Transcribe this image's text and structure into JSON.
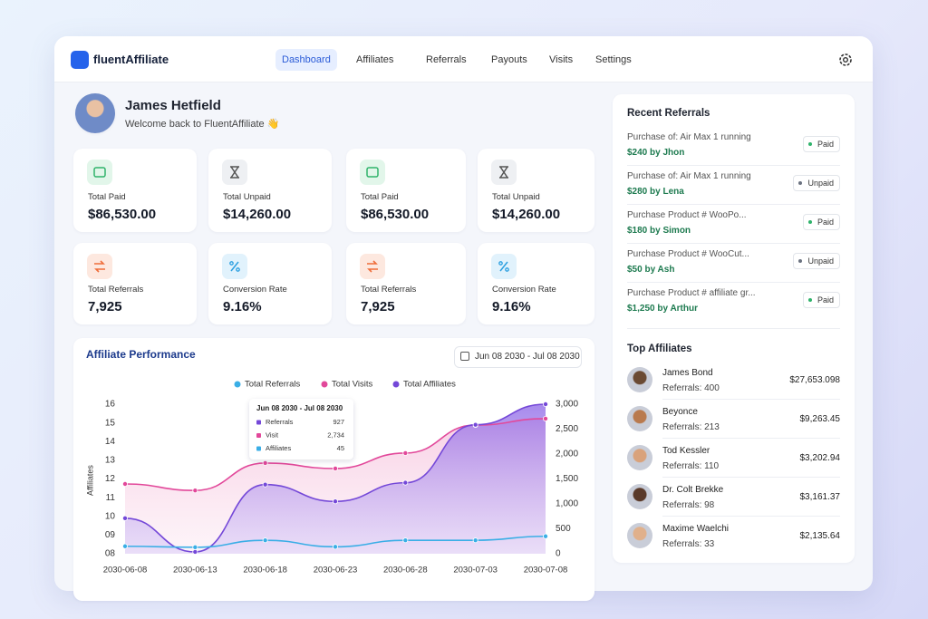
{
  "header": {
    "brand": "fluentAffiliate",
    "nav": [
      "Dashboard",
      "Affiliates",
      "Referrals",
      "Payouts",
      "Visits",
      "Settings"
    ]
  },
  "profile": {
    "name": "James Hetfield",
    "greeting": "Welcome back to FluentAffiliate 👋"
  },
  "stats": [
    {
      "label": "Total Paid",
      "value": "$86,530.00"
    },
    {
      "label": "Total Unpaid",
      "value": "$14,260.00"
    },
    {
      "label": "Total Paid",
      "value": "$86,530.00"
    },
    {
      "label": "Total Unpaid",
      "value": "$14,260.00"
    },
    {
      "label": "Total Referrals",
      "value": "7,925"
    },
    {
      "label": "Conversion Rate",
      "value": "9.16%"
    },
    {
      "label": "Total Referrals",
      "value": "7,925"
    },
    {
      "label": "Conversion Rate",
      "value": "9.16%"
    }
  ],
  "chart_data": {
    "type": "line",
    "title": "Affiliate Performance",
    "date_range": "Jun 08 2030 - Jul 08 2030",
    "ylabel": "Affiliates",
    "categories": [
      "2030-06-08",
      "2030-06-13",
      "2030-06-18",
      "2030-06-23",
      "2030-06-28",
      "2030-07-03",
      "2030-07-08"
    ],
    "series": [
      {
        "name": "Total Referrals",
        "color": "#3aaee6",
        "axis": "y2",
        "area": false,
        "values": [
          150,
          130,
          270,
          140,
          270,
          270,
          350
        ]
      },
      {
        "name": "Total Visits",
        "color": "#e2489a",
        "axis": "y2",
        "area": true,
        "values": [
          1400,
          1270,
          1820,
          1710,
          2020,
          2580,
          2710
        ]
      },
      {
        "name": "Total Affiliates",
        "color": "#7448d8",
        "axis": "y",
        "area": true,
        "values": [
          9.9,
          8.1,
          11.7,
          10.8,
          11.8,
          14.9,
          16
        ]
      }
    ],
    "ylim": [
      8,
      16
    ],
    "yticks": [
      {
        "value": 8,
        "label": "08"
      },
      {
        "value": 9,
        "label": "09"
      },
      10,
      11,
      12,
      13,
      14,
      15,
      16
    ],
    "y2lim": [
      0,
      3000
    ],
    "y2ticks": [
      0,
      500,
      {
        "value": 1000,
        "label": "1,000"
      },
      {
        "value": 1500,
        "label": "1,500"
      },
      {
        "value": 2000,
        "label": "2,000"
      },
      {
        "value": 2500,
        "label": "2,500"
      },
      {
        "value": 3000,
        "label": "3,000"
      }
    ],
    "grid": false,
    "tooltip": {
      "title": "Jun 08 2030 - Jul 08 2030",
      "rows": [
        {
          "name": "Referrals",
          "value": "927"
        },
        {
          "name": "Visit",
          "value": "2,734"
        },
        {
          "name": "Affiliates",
          "value": "45"
        }
      ]
    }
  },
  "recent_referrals": {
    "title": "Recent Referrals",
    "items": [
      {
        "product": "Purchase of: Air Max 1 running",
        "amount": "$240 by Jhon",
        "status": "Paid"
      },
      {
        "product": "Purchase of: Air Max 1 running",
        "amount": "$280 by Lena",
        "status": "Unpaid"
      },
      {
        "product": "Purchase Product # WooPo...",
        "amount": "$180 by Simon",
        "status": "Paid"
      },
      {
        "product": "Purchase Product # WooCut...",
        "amount": "$50 by Ash",
        "status": "Unpaid"
      },
      {
        "product": "Purchase Product # affiliate gr...",
        "amount": "$1,250 by Arthur",
        "status": "Paid"
      }
    ]
  },
  "top_affiliates": {
    "title": "Top Affiliates",
    "items": [
      {
        "name": "James Bond",
        "referrals": "Referrals: 400",
        "earnings": "$27,653.098"
      },
      {
        "name": "Beyonce",
        "referrals": "Referrals: 213",
        "earnings": "$9,263.45"
      },
      {
        "name": "Tod Kessler",
        "referrals": "Referrals: 110",
        "earnings": "$3,202.94"
      },
      {
        "name": "Dr. Colt Brekke",
        "referrals": "Referrals: 98",
        "earnings": "$3,161.37"
      },
      {
        "name": "Maxime Waelchi",
        "referrals": "Referrals: 33",
        "earnings": "$2,135.64"
      }
    ]
  }
}
